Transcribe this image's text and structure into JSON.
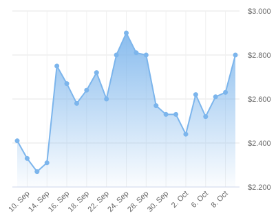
{
  "chart_data": {
    "type": "area",
    "categories": [
      null,
      "10. Sep",
      null,
      "14. Sep",
      null,
      "16. Sep",
      null,
      "18. Sep",
      null,
      "22. Sep",
      null,
      "24. Sep",
      null,
      "28. Sep",
      null,
      "30. Sep",
      null,
      "2. Oct",
      null,
      "6. Oct",
      null,
      "8. Oct",
      null
    ],
    "values": [
      2.41,
      2.33,
      2.27,
      2.31,
      2.75,
      2.67,
      2.58,
      2.64,
      2.72,
      2.6,
      2.8,
      2.9,
      2.81,
      2.8,
      2.57,
      2.53,
      2.53,
      2.44,
      2.62,
      2.52,
      2.61,
      2.63,
      2.8
    ],
    "color": "#7cb5ec",
    "ylim": [
      2.2,
      3.0
    ],
    "yticks": [
      {
        "value": 2.2,
        "label": "$2.200"
      },
      {
        "value": 2.4,
        "label": "$2.400"
      },
      {
        "value": 2.6,
        "label": "$2.600"
      },
      {
        "value": 2.8,
        "label": "$2.800"
      },
      {
        "value": 3.0,
        "label": "$3.000"
      }
    ],
    "grid": true
  }
}
